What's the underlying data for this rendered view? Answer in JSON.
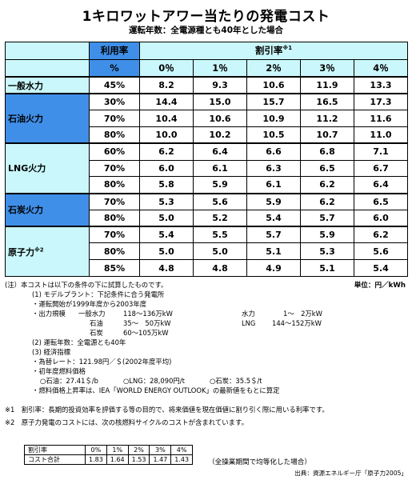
{
  "title": "1キロワットアワー当たりの発電コスト",
  "subtitle": "運転年数：全電源種とも40年とした場合",
  "table": {
    "col_utilization": "利用率",
    "col_percent": "%",
    "col_discount": "割引率",
    "col_discount_note": "※1",
    "discount_rates": [
      "0％",
      "1％",
      "2％",
      "3％",
      "4％"
    ],
    "groups": [
      {
        "name": "一般水力",
        "note": "",
        "rows": [
          {
            "rate": "45%",
            "values": [
              "8.2",
              "9.3",
              "10.6",
              "11.9",
              "13.3"
            ]
          }
        ]
      },
      {
        "name": "石油火力",
        "note": "",
        "rows": [
          {
            "rate": "30%",
            "values": [
              "14.4",
              "15.0",
              "15.7",
              "16.5",
              "17.3"
            ]
          },
          {
            "rate": "70%",
            "values": [
              "10.4",
              "10.6",
              "10.9",
              "11.2",
              "11.6"
            ]
          },
          {
            "rate": "80%",
            "values": [
              "10.0",
              "10.2",
              "10.5",
              "10.7",
              "11.0"
            ]
          }
        ]
      },
      {
        "name": "LNG火力",
        "note": "",
        "rows": [
          {
            "rate": "60%",
            "values": [
              "6.2",
              "6.4",
              "6.6",
              "6.8",
              "7.1"
            ]
          },
          {
            "rate": "70%",
            "values": [
              "6.0",
              "6.1",
              "6.3",
              "6.5",
              "6.7"
            ]
          },
          {
            "rate": "80%",
            "values": [
              "5.8",
              "5.9",
              "6.1",
              "6.2",
              "6.4"
            ]
          }
        ]
      },
      {
        "name": "石炭火力",
        "note": "",
        "rows": [
          {
            "rate": "70%",
            "values": [
              "5.3",
              "5.6",
              "5.9",
              "6.2",
              "6.5"
            ]
          },
          {
            "rate": "80%",
            "values": [
              "5.0",
              "5.2",
              "5.4",
              "5.7",
              "6.0"
            ]
          }
        ]
      },
      {
        "name": "原子力",
        "note": "※2",
        "rows": [
          {
            "rate": "70%",
            "values": [
              "5.4",
              "5.5",
              "5.7",
              "5.9",
              "6.2"
            ]
          },
          {
            "rate": "80%",
            "values": [
              "5.0",
              "5.0",
              "5.1",
              "5.3",
              "5.6"
            ]
          },
          {
            "rate": "85%",
            "values": [
              "4.8",
              "4.8",
              "4.9",
              "5.1",
              "5.4"
            ]
          }
        ]
      }
    ]
  },
  "unit": "単位：円／kWh",
  "notes": {
    "n0": "(注）本コストは以下の条件の下に試算したものです。",
    "n1": "(1) モデルプラント：下記条件に合う発電所",
    "n2": "・運転開始が1999年度から2003年度",
    "n3a": "・出力規模",
    "n3b": "一般水力",
    "n3c": "118～136万kW",
    "n3d": "水力",
    "n3e": "1～　2万kW",
    "n4b": "石油",
    "n4c": "35～　50万kW",
    "n4d": "LNG",
    "n4e": "144～152万kW",
    "n5b": "石炭",
    "n5c": "60～105万kW",
    "n6": "(2) 運転年数：全電源とも40年",
    "n7": "(3) 経済指標",
    "n8": "・為替レート：121.98円／＄(2002年度平均)",
    "n9": "・初年度燃料価格",
    "n10a": "○石油：27.41＄/b",
    "n10b": "○LNG：28,090円/t",
    "n10c": "○石炭：35.5＄/t",
    "n11": "・燃料価格上昇率は、IEA「WORLD ENERGY OUTLOOK」の最新値をもとに算定",
    "f1": "※1　割引率：長期的投資効率を評価する等の目的で、将来価値を現在価値に割り引く際に用いる利率です。",
    "f2": "※2　原子力発電のコストには、次の核燃料サイクルのコストが含まれています。"
  },
  "sub_table": {
    "header": [
      "割引率",
      "0%",
      "1%",
      "2%",
      "3%",
      "4%"
    ],
    "row": [
      "コスト合計",
      "1.83",
      "1.64",
      "1.53",
      "1.47",
      "1.43"
    ]
  },
  "sub_note": "（全操業期間で均等化した場合）",
  "source": "出典：資源エネルギー庁「原子力2005」"
}
